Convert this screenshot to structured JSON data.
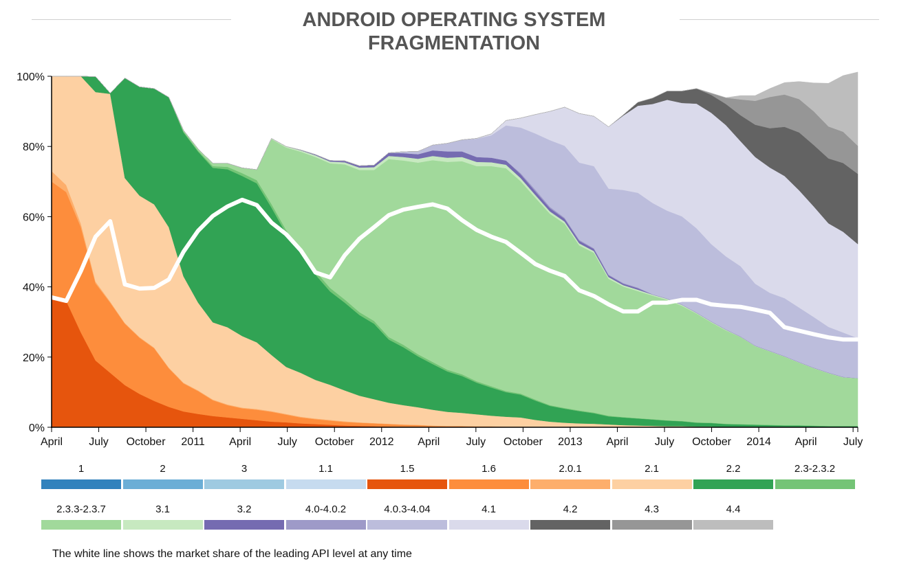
{
  "chart_data": {
    "type": "area",
    "title": [
      "ANDROID OPERATING SYSTEM",
      "FRAGMENTATION"
    ],
    "ylim": [
      0,
      100
    ],
    "y_ticks": [
      "0%",
      "20%",
      "40%",
      "60%",
      "80%",
      "100%"
    ],
    "x_tick_labels": [
      "April",
      "July",
      "October",
      "2011",
      "April",
      "July",
      "October",
      "2012",
      "April",
      "July",
      "October",
      "2013",
      "April",
      "July",
      "October",
      "2014",
      "April",
      "July"
    ],
    "footnote": "The white line shows the market share of the leading API level at any time",
    "stacked": true,
    "series_order_bottom_to_top": [
      "1",
      "2",
      "3",
      "1.1",
      "1.5",
      "1.6",
      "2.0.1",
      "2.1",
      "2.2",
      "2.3-2.3.2",
      "2.3.3-2.3.7",
      "3.1",
      "3.2",
      "4.0-4.0.2",
      "4.0.3-4.04",
      "4.1",
      "4.2",
      "4.3",
      "4.4"
    ],
    "series": [
      {
        "name": "1",
        "color": "#3182bd"
      },
      {
        "name": "2",
        "color": "#6baed6"
      },
      {
        "name": "3",
        "color": "#9ecae1"
      },
      {
        "name": "1.1",
        "color": "#c6dbef"
      },
      {
        "name": "1.5",
        "color": "#e6550d",
        "values": [
          37,
          36,
          27,
          19,
          15.5,
          12,
          9.5,
          7.5,
          5.8,
          4.5,
          3.8,
          3.2,
          2.8,
          2.4,
          2,
          1.6,
          1.4,
          1.1,
          0.9,
          0.7,
          0.5,
          0.4,
          0.3,
          0.2,
          0.1,
          0.1,
          0,
          0,
          0,
          0,
          0,
          0,
          0,
          0,
          0,
          0,
          0,
          0,
          0,
          0,
          0,
          0,
          0,
          0,
          0,
          0,
          0,
          0,
          0,
          0,
          0,
          0,
          0,
          0,
          0,
          0
        ]
      },
      {
        "name": "1.6",
        "color": "#fd8d3c",
        "values": [
          33,
          31,
          30,
          22,
          20,
          17.5,
          16,
          15,
          11,
          8,
          6.5,
          4.5,
          3.5,
          3,
          3,
          2.8,
          2.2,
          1.7,
          1.4,
          1.2,
          1,
          0.9,
          0.8,
          0.7,
          0.6,
          0.5,
          0.4,
          0.3,
          0.3,
          0.2,
          0.2,
          0.1,
          0.1,
          0,
          0,
          0,
          0,
          0,
          0,
          0,
          0,
          0,
          0,
          0,
          0,
          0,
          0,
          0,
          0,
          0,
          0,
          0,
          0,
          0,
          0,
          0
        ]
      },
      {
        "name": "2.0.1",
        "color": "#fdae6b",
        "values": [
          3,
          2,
          1,
          0.5,
          0.3,
          0.2,
          0.2,
          0.2,
          0.2,
          0.2,
          0.2,
          0.2,
          0.2,
          0.2,
          0.2,
          0.2,
          0.2,
          0.2,
          0.2,
          0.2,
          0.2,
          0.1,
          0.1,
          0.1,
          0.1,
          0.1,
          0.1,
          0.1,
          0.1,
          0.1,
          0.1,
          0.1,
          0.1,
          0.1,
          0.1,
          0.1,
          0.1,
          0.1,
          0,
          0,
          0,
          0,
          0,
          0,
          0,
          0,
          0,
          0,
          0,
          0,
          0,
          0,
          0,
          0,
          0,
          0
        ]
      },
      {
        "name": "2.1",
        "color": "#fdd0a2",
        "values": [
          27,
          31,
          42,
          54,
          59.2,
          41.3,
          40.3,
          40.8,
          40,
          30.3,
          25,
          22,
          22,
          20.4,
          19,
          16,
          13.4,
          12.5,
          11,
          10,
          8.8,
          7.6,
          6.8,
          6,
          5.5,
          5,
          4.5,
          4,
          3.7,
          3.4,
          3,
          2.8,
          2.6,
          2,
          1.5,
          1.2,
          1,
          0.9,
          0.8,
          0.6,
          0.5,
          0.4,
          0.3,
          0.3,
          0.2,
          0.2,
          0,
          0,
          0,
          0,
          0,
          0,
          0,
          0,
          0,
          0
        ]
      },
      {
        "name": "2.2",
        "color": "#31a354",
        "values": [
          0,
          0,
          0,
          4.4,
          0.2,
          28.5,
          31,
          33,
          37,
          41,
          43,
          44,
          45,
          45.6,
          45.3,
          42,
          38,
          34,
          30,
          26.6,
          25,
          23,
          21.5,
          18,
          16.5,
          14.5,
          13,
          11.5,
          10.5,
          9,
          8,
          7,
          6.5,
          5.5,
          4.5,
          4,
          3.5,
          3,
          2.3,
          2.2,
          2,
          1.8,
          1.6,
          1.4,
          1.1,
          1,
          0.9,
          0.8,
          0.7,
          0.6,
          0.5,
          0.5,
          0.4,
          0.3,
          0.3,
          0.3
        ]
      },
      {
        "name": "2.3-2.3.2",
        "color": "#74c476",
        "values": [
          0,
          0,
          0,
          0,
          0,
          0,
          0,
          0,
          0,
          0.3,
          0.3,
          0.5,
          0.7,
          0.8,
          0.9,
          1,
          1,
          1,
          1,
          1,
          0.9,
          0.8,
          0.8,
          0.7,
          0.7,
          0.6,
          0.6,
          0.5,
          0.5,
          0.4,
          0.4,
          0.3,
          0.3,
          0.3,
          0.2,
          0.2,
          0.2,
          0.2,
          0.2,
          0.1,
          0.1,
          0.1,
          0.1,
          0.1,
          0.1,
          0.1,
          0.1,
          0.1,
          0.1,
          0.1,
          0.1,
          0.1,
          0.1,
          0.1,
          0.1,
          0.1
        ]
      },
      {
        "name": "2.3.3-2.3.7",
        "color": "#a1d99b",
        "values": [
          0,
          0,
          0,
          0,
          0,
          0,
          0,
          0,
          0,
          0.3,
          0.5,
          0.8,
          1,
          1.5,
          3,
          18.5,
          23.5,
          28,
          32.5,
          35.5,
          38.5,
          40.5,
          43,
          50.7,
          52.5,
          54.6,
          57.5,
          59.2,
          60.7,
          61.3,
          62.7,
          63.5,
          60.5,
          57.5,
          54.5,
          52.5,
          47,
          45.5,
          39,
          37.2,
          36.2,
          35.2,
          34.3,
          32.8,
          31,
          28.6,
          26.6,
          24.8,
          22.3,
          20.9,
          19.5,
          17.8,
          16.3,
          15,
          13.8,
          13.6
        ]
      },
      {
        "name": "3.1",
        "color": "#c7e9c0",
        "values": [
          0,
          0,
          0,
          0,
          0,
          0,
          0,
          0,
          0,
          0,
          0,
          0,
          0,
          0,
          0,
          0.2,
          0.3,
          0.4,
          0.5,
          0.5,
          0.6,
          0.7,
          0.8,
          0.9,
          1,
          1.1,
          1.2,
          1.2,
          1.2,
          1.2,
          1.1,
          1,
          0.9,
          0.8,
          0.7,
          0.6,
          0.6,
          0.5,
          0.5,
          0.4,
          0.4,
          0.3,
          0.3,
          0.3,
          0.2,
          0.2,
          0.2,
          0.1,
          0.1,
          0.1,
          0.1,
          0.1,
          0.1,
          0.1,
          0.1,
          0
        ]
      },
      {
        "name": "3.2",
        "color": "#756bb1",
        "values": [
          0,
          0,
          0,
          0,
          0,
          0,
          0,
          0,
          0,
          0,
          0,
          0,
          0,
          0,
          0,
          0,
          0,
          0.1,
          0.2,
          0.3,
          0.4,
          0.5,
          0.6,
          0.9,
          1.1,
          1.3,
          1.6,
          1.8,
          1.6,
          1.4,
          1.3,
          1.2,
          1.1,
          1,
          0.9,
          0.8,
          0.7,
          0.6,
          0.5,
          0.4,
          0.4,
          0,
          0,
          0,
          0,
          0,
          0,
          0,
          0,
          0,
          0,
          0,
          0,
          0,
          0,
          0
        ]
      },
      {
        "name": "4.0-4.0.2",
        "color": "#9e9ac8",
        "values": [
          0,
          0,
          0,
          0,
          0,
          0,
          0,
          0,
          0,
          0,
          0,
          0,
          0,
          0,
          0,
          0,
          0,
          0,
          0,
          0,
          0,
          0,
          0,
          0,
          0,
          0,
          0,
          0,
          0,
          0,
          0,
          0,
          0.3,
          0.5,
          0.4,
          0.3,
          0.3,
          0.2,
          0.2,
          0.2,
          0.2,
          0.1,
          0.1,
          0.1,
          0.1,
          0.1,
          0.1,
          0.1,
          0.1,
          0.1,
          0.1,
          0.1,
          0.1,
          0.1,
          0.1,
          0
        ]
      },
      {
        "name": "4.0.3-4.04",
        "color": "#bcbddc",
        "values": [
          0,
          0,
          0,
          0,
          0,
          0,
          0,
          0,
          0,
          0,
          0,
          0,
          0,
          0,
          0,
          0,
          0,
          0,
          0,
          0,
          0,
          0,
          0,
          0,
          0.4,
          0.8,
          1.5,
          2.3,
          3.3,
          5.2,
          6.4,
          10,
          13,
          16,
          19,
          20.5,
          22,
          23.4,
          24.5,
          26.5,
          27,
          26,
          25,
          25.1,
          24,
          22,
          20.8,
          20,
          17.6,
          16.5,
          16.5,
          15.5,
          14.4,
          13,
          12.6,
          11.4
        ]
      },
      {
        "name": "4.1",
        "color": "#dadaeb",
        "values": [
          0,
          0,
          0,
          0,
          0,
          0,
          0,
          0,
          0,
          0,
          0,
          0,
          0,
          0,
          0,
          0,
          0,
          0,
          0,
          0,
          0,
          0,
          0,
          0,
          0,
          0,
          0,
          0,
          0,
          0.1,
          0.4,
          1.4,
          2.7,
          5.4,
          8.2,
          11,
          14,
          14.2,
          17.6,
          21.2,
          24.8,
          28.2,
          31.6,
          32.3,
          35.5,
          37.4,
          37.4,
          35.6,
          36.1,
          35.7,
          34.8,
          33.4,
          31.5,
          29.5,
          28.7,
          26.8
        ]
      },
      {
        "name": "4.2",
        "color": "#636363",
        "values": [
          0,
          0,
          0,
          0,
          0,
          0,
          0,
          0,
          0,
          0,
          0,
          0,
          0,
          0,
          0,
          0,
          0,
          0,
          0,
          0,
          0,
          0,
          0,
          0,
          0,
          0,
          0,
          0,
          0,
          0,
          0,
          0,
          0,
          0,
          0,
          0,
          0,
          0,
          0,
          0.2,
          1,
          1.7,
          2.5,
          3.4,
          4.3,
          5.1,
          6,
          7.4,
          9.2,
          11.2,
          14,
          16.5,
          17.5,
          18.5,
          19.6,
          20
        ]
      },
      {
        "name": "4.3",
        "color": "#969696",
        "values": [
          0,
          0,
          0,
          0,
          0,
          0,
          0,
          0,
          0,
          0,
          0,
          0,
          0,
          0,
          0,
          0,
          0,
          0,
          0,
          0,
          0,
          0,
          0,
          0,
          0,
          0,
          0,
          0,
          0,
          0,
          0,
          0,
          0,
          0,
          0,
          0,
          0,
          0,
          0,
          0,
          0,
          0,
          0,
          0,
          0,
          0.5,
          1.8,
          4.5,
          6.8,
          8.9,
          9.2,
          9.5,
          9.6,
          9.1,
          8.9,
          8
        ]
      },
      {
        "name": "4.4",
        "color": "#bdbdbd",
        "values": [
          0,
          0,
          0,
          0,
          0,
          0,
          0,
          0,
          0,
          0,
          0,
          0,
          0,
          0,
          0,
          0,
          0,
          0,
          0,
          0,
          0,
          0,
          0,
          0,
          0,
          0,
          0,
          0,
          0,
          0,
          0,
          0,
          0,
          0,
          0,
          0,
          0,
          0,
          0,
          0,
          0,
          0,
          0,
          0,
          0,
          0,
          0,
          1.1,
          1.5,
          2.4,
          3.4,
          5,
          8.1,
          12.3,
          16,
          21
        ]
      }
    ],
    "leading_api_share_line": {
      "color": "#ffffff",
      "values": [
        37,
        36,
        44.5,
        54.3,
        58.7,
        40.7,
        39.5,
        39.7,
        42.1,
        50,
        56,
        60.2,
        62.9,
        64.8,
        63.3,
        58.3,
        55,
        50.4,
        44.1,
        42.7,
        49,
        53.7,
        57,
        60.4,
        62,
        62.8,
        63.5,
        62.3,
        59,
        56.2,
        54.3,
        52.8,
        49.7,
        46.5,
        44.6,
        43.1,
        39,
        37.4,
        35,
        33,
        33,
        35.5,
        35.5,
        36.3,
        36.3,
        35,
        34.6,
        34.3,
        33.5,
        32.6,
        28.5,
        27.5,
        26.5,
        25.6,
        25,
        25
      ]
    }
  },
  "legend": {
    "row1": [
      {
        "label": "1",
        "color": "#3182bd"
      },
      {
        "label": "2",
        "color": "#6baed6"
      },
      {
        "label": "3",
        "color": "#9ecae1"
      },
      {
        "label": "1.1",
        "color": "#c6dbef"
      },
      {
        "label": "1.5",
        "color": "#e6550d"
      },
      {
        "label": "1.6",
        "color": "#fd8d3c"
      },
      {
        "label": "2.0.1",
        "color": "#fdae6b"
      },
      {
        "label": "2.1",
        "color": "#fdd0a2"
      },
      {
        "label": "2.2",
        "color": "#31a354"
      },
      {
        "label": "2.3-2.3.2",
        "color": "#74c476"
      }
    ],
    "row2": [
      {
        "label": "2.3.3-2.3.7",
        "color": "#a1d99b"
      },
      {
        "label": "3.1",
        "color": "#c7e9c0"
      },
      {
        "label": "3.2",
        "color": "#756bb1"
      },
      {
        "label": "4.0-4.0.2",
        "color": "#9e9ac8"
      },
      {
        "label": "4.0.3-4.04",
        "color": "#bcbddc"
      },
      {
        "label": "4.1",
        "color": "#dadaeb"
      },
      {
        "label": "4.2",
        "color": "#636363"
      },
      {
        "label": "4.3",
        "color": "#969696"
      },
      {
        "label": "4.4",
        "color": "#bdbdbd"
      }
    ]
  }
}
